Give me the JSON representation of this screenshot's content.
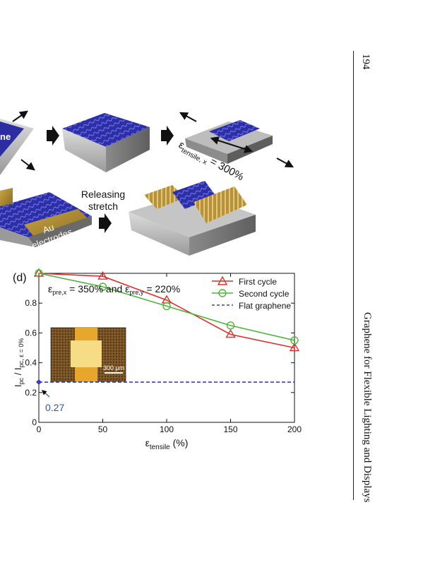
{
  "page": {
    "running_title": "Graphene for Flexible Lighting and Displays",
    "page_number": "194"
  },
  "figure": {
    "top": {
      "partial_label": "ne",
      "strain_label": "ε",
      "strain_sub": "tensile, x",
      "strain_value": " = 300%",
      "releasing_line1": "Releasing",
      "releasing_line2": "stretch",
      "au_line1": "Au",
      "au_line2": "electrodes"
    },
    "panel_label": "(d)",
    "prestrain": {
      "eps1": "ε",
      "sub1": "pre,x",
      "mid": " = 350% and ",
      "eps2": "ε",
      "sub2": "pre,y",
      "end": " = 220%"
    },
    "inset_scale_label": "300 μm",
    "annotation": "0.27",
    "colors": {
      "first": "#d9312f",
      "second": "#4fb43a",
      "flat": "#3a3db8",
      "annotation": "#2f56a6"
    }
  },
  "chart_data": {
    "type": "line",
    "xlabel": "ε",
    "xlabel_sub": "tensile",
    "xlabel_unit": " (%)",
    "ylabel": "I",
    "ylabel_parts": [
      "I",
      "pc",
      " / I",
      "pc, ε = 0%"
    ],
    "xlim": [
      0,
      200
    ],
    "ylim": [
      0,
      1.0
    ],
    "xticks": [
      0,
      50,
      100,
      150,
      200
    ],
    "yticks": [
      0,
      0.2,
      0.4,
      0.6,
      0.8
    ],
    "xtick_labels": [
      "0",
      "50",
      "100",
      "150",
      "200"
    ],
    "ytick_labels": [
      "0",
      "0.2",
      "0.4",
      "0.6",
      "0.8"
    ],
    "legend_position": "top-right",
    "grid": false,
    "series": [
      {
        "name": "First cycle",
        "marker": "triangle",
        "color": "#d9312f",
        "x": [
          0,
          50,
          100,
          150,
          200
        ],
        "y": [
          1.0,
          0.98,
          0.82,
          0.59,
          0.5
        ]
      },
      {
        "name": "Second cycle",
        "marker": "circle",
        "color": "#4fb43a",
        "x": [
          0,
          50,
          100,
          150,
          200
        ],
        "y": [
          1.0,
          0.91,
          0.78,
          0.65,
          0.55
        ]
      },
      {
        "name": "Flat graphene",
        "marker": "none",
        "dashed": true,
        "color": "#3a3db8",
        "x": [
          0,
          200
        ],
        "y": [
          0.27,
          0.27
        ]
      }
    ]
  }
}
